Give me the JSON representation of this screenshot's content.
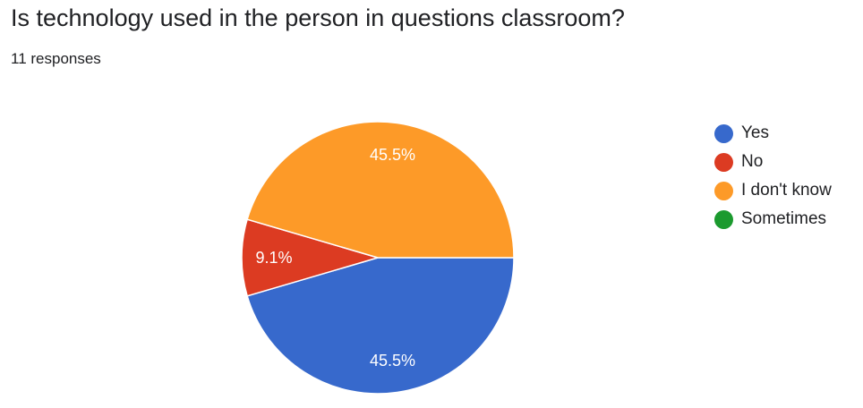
{
  "header": {
    "question": "Is technology used in the person in questions classroom?",
    "responses": "11 responses"
  },
  "colors": {
    "Yes": "#3769cc",
    "No": "#dc3b22",
    "I don't know": "#fd9a28",
    "Sometimes": "#1b9a2e"
  },
  "chart_data": {
    "type": "pie",
    "title": "Is technology used in the person in questions classroom?",
    "categories": [
      "Yes",
      "No",
      "I don't know",
      "Sometimes"
    ],
    "values": [
      45.5,
      9.1,
      45.5,
      0
    ],
    "data_labels": [
      "45.5%",
      "9.1%",
      "45.5%",
      ""
    ],
    "legend_position": "right"
  }
}
